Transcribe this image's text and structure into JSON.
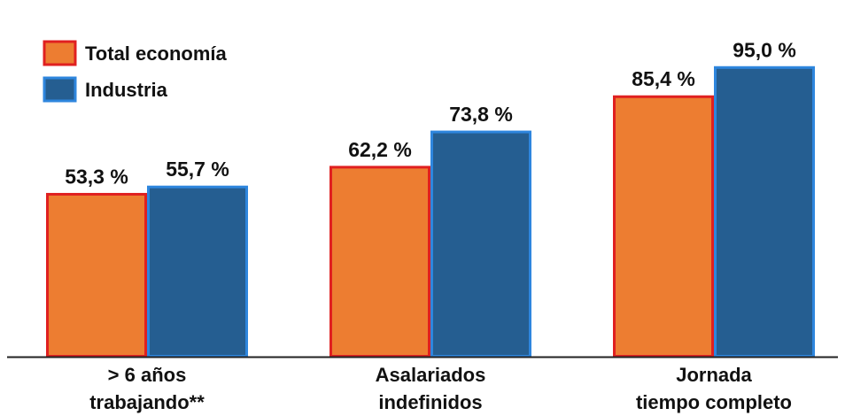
{
  "chart_data": {
    "type": "bar",
    "categories": [
      [
        "> 6 años",
        "trabajando**"
      ],
      [
        "Asalariados",
        "indefinidos"
      ],
      [
        "Jornada",
        "tiempo completo"
      ]
    ],
    "series": [
      {
        "name": "Total economía",
        "values": [
          53.3,
          62.2,
          85.4
        ],
        "labels": [
          "53,3 %",
          "62,2 %",
          "85,4 %"
        ],
        "fill": "#ED7D31",
        "stroke": "#E02020"
      },
      {
        "name": "Industria",
        "values": [
          55.7,
          73.8,
          95.0
        ],
        "labels": [
          "55,7 %",
          "73,8 %",
          "95,0 %"
        ],
        "fill": "#255E91",
        "stroke": "#2E86DE"
      }
    ],
    "ylim": [
      0,
      100
    ],
    "grid": false,
    "legend": "top-left"
  }
}
